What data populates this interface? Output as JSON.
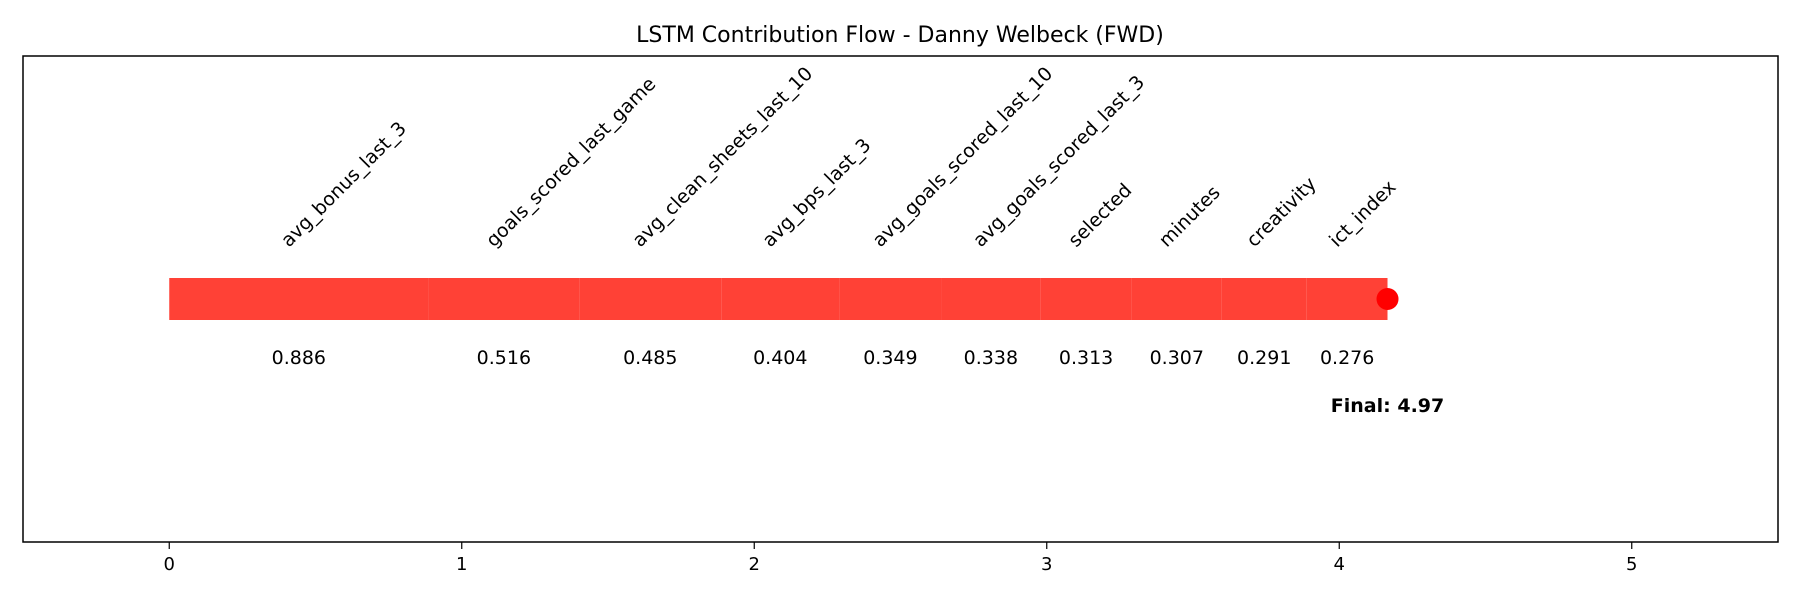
{
  "chart_data": {
    "type": "bar",
    "title": "LSTM Contribution Flow - Danny Welbeck (FWD)",
    "xlabel": "",
    "ylabel": "",
    "xlim": [
      -0.5,
      5.5
    ],
    "xticks": [
      0,
      1,
      2,
      3,
      4,
      5
    ],
    "grid": false,
    "segments": [
      {
        "feature": "avg_bonus_last_3",
        "value": 0.886,
        "label": "0.886"
      },
      {
        "feature": "goals_scored_last_game",
        "value": 0.516,
        "label": "0.516"
      },
      {
        "feature": "avg_clean_sheets_last_10",
        "value": 0.485,
        "label": "0.485"
      },
      {
        "feature": "avg_bps_last_3",
        "value": 0.404,
        "label": "0.404"
      },
      {
        "feature": "avg_goals_scored_last_10",
        "value": 0.349,
        "label": "0.349"
      },
      {
        "feature": "avg_goals_scored_last_3",
        "value": 0.338,
        "label": "0.338"
      },
      {
        "feature": "selected",
        "value": 0.313,
        "label": "0.313"
      },
      {
        "feature": "minutes",
        "value": 0.307,
        "label": "0.307"
      },
      {
        "feature": "creativity",
        "value": 0.291,
        "label": "0.291"
      },
      {
        "feature": "ict_index",
        "value": 0.276,
        "label": "0.276"
      }
    ],
    "final_label": "Final: 4.97",
    "colors": {
      "bar": "#ff4136",
      "end_marker": "#ff0000"
    }
  }
}
